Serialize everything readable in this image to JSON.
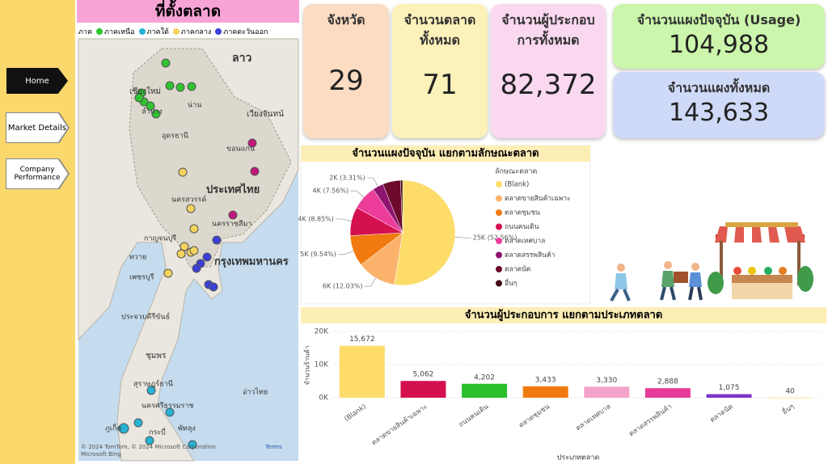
{
  "nav": {
    "items": [
      "Home",
      "Market Details",
      "Company Performance"
    ]
  },
  "map": {
    "title": "ที่ตั้งตลาด",
    "legend": {
      "title": "ภาค",
      "items": [
        {
          "name": "ภาคเหนือ",
          "color": "#2fc42f"
        },
        {
          "name": "ภาคใต้",
          "color": "#26b3d6"
        },
        {
          "name": "ภาคกลาง",
          "color": "#f4d35e"
        },
        {
          "name": "ภาคตะวันออก",
          "color": "#3b3fd8"
        }
      ]
    },
    "labels": [
      "ลาว",
      "เชียงใหม่",
      "ลำปาง",
      "น่าน",
      "เวียงจันทน์",
      "อุดรธานี",
      "ขอนแก่น",
      "ประเทศไทย",
      "นครสวรรค์",
      "นครราชสีมา",
      "กาญจนบุรี",
      "กรุงเทพมหานคร",
      "เพชรบุรี",
      "ประจวบคีรีขันธ์",
      "ชุมพร",
      "สุราษฎร์ธานี",
      "นครศรีธรรมราช",
      "ภูเก็ต",
      "กระบี่",
      "พัทลุง",
      "อ่าวไทย",
      "ทวาย"
    ],
    "attribution": "© 2024 TomTom, © 2024 Microsoft Corporation",
    "terms": "Terms",
    "bing": "Microsoft Bing"
  },
  "kpis": [
    {
      "title": "จังหวัด",
      "value": "29"
    },
    {
      "title": "จำนวนตลาดทั้งหมด",
      "value": "71"
    },
    {
      "title": "จำนวนผู้ประกอบการทั้งหมด",
      "value": "82,372"
    },
    {
      "title": "จำนวนแผงปัจจุบัน (Usage)",
      "value": "104,988"
    },
    {
      "title": "จำนวนแผงทั้งหมด",
      "value": "143,633"
    }
  ],
  "chart_data": [
    {
      "type": "pie",
      "title": "จำนวนแผงปัจจุบัน แยกตามลักษณะตลาด",
      "legend_title": "ลักษณะตลาด",
      "categories": [
        "(Blank)",
        "ตลาดขายสินค้าเฉพาะ",
        "ตลาดชุมชน",
        "ถนนคนเดิน",
        "ตลาดเทศบาล",
        "ตลาดสรรพสินค้า",
        "ตลาดนัด",
        "อื่นๆ"
      ],
      "values": [
        52.56,
        12.03,
        9.54,
        8.85,
        7.56,
        3.31,
        5.5,
        0.65
      ],
      "value_labels": [
        "25K (52.56%)",
        "6K (12.03%)",
        "5K (9.54%)",
        "4K (8.85%)",
        "4K (7.56%)",
        "2K (3.31%)",
        null,
        null
      ],
      "colors": [
        "#fddc6a",
        "#fbb36b",
        "#f07a10",
        "#d5104e",
        "#ec3c9a",
        "#8e1470",
        "#6e0a2c",
        "#3e0810"
      ]
    },
    {
      "type": "bar",
      "title": "จำนวนผู้ประกอบการ แยกตามประเภทตลาด",
      "x_label": "ประเภทตลาด",
      "y_label": "จำนวนร้านค้า",
      "categories": [
        "(Blank)",
        "ตลาดขายสินค้าเฉพาะ",
        "ถนนคนเดิน",
        "ตลาดชุมชน",
        "ตลาดเทศบาล",
        "ตลาดสรรพสินค้า",
        "ตลาดนัด",
        "อื่นๆ"
      ],
      "values": [
        15672,
        5062,
        4202,
        3433,
        3330,
        2888,
        1075,
        40
      ],
      "value_labels": [
        "15,672",
        "5,062",
        "4,202",
        "3,433",
        "3,330",
        "2,888",
        "1,075",
        "40"
      ],
      "colors": [
        "#fddc6a",
        "#d5104e",
        "#2bbf2b",
        "#f07a10",
        "#f4a3c9",
        "#e63c9a",
        "#7d34c9",
        "#f7e7a8"
      ],
      "ylim": [
        0,
        20000
      ],
      "yticks": [
        {
          "value": 0,
          "label": "0K"
        },
        {
          "value": 10000,
          "label": "10K"
        },
        {
          "value": 20000,
          "label": "20K"
        }
      ],
      "grid": true
    }
  ]
}
